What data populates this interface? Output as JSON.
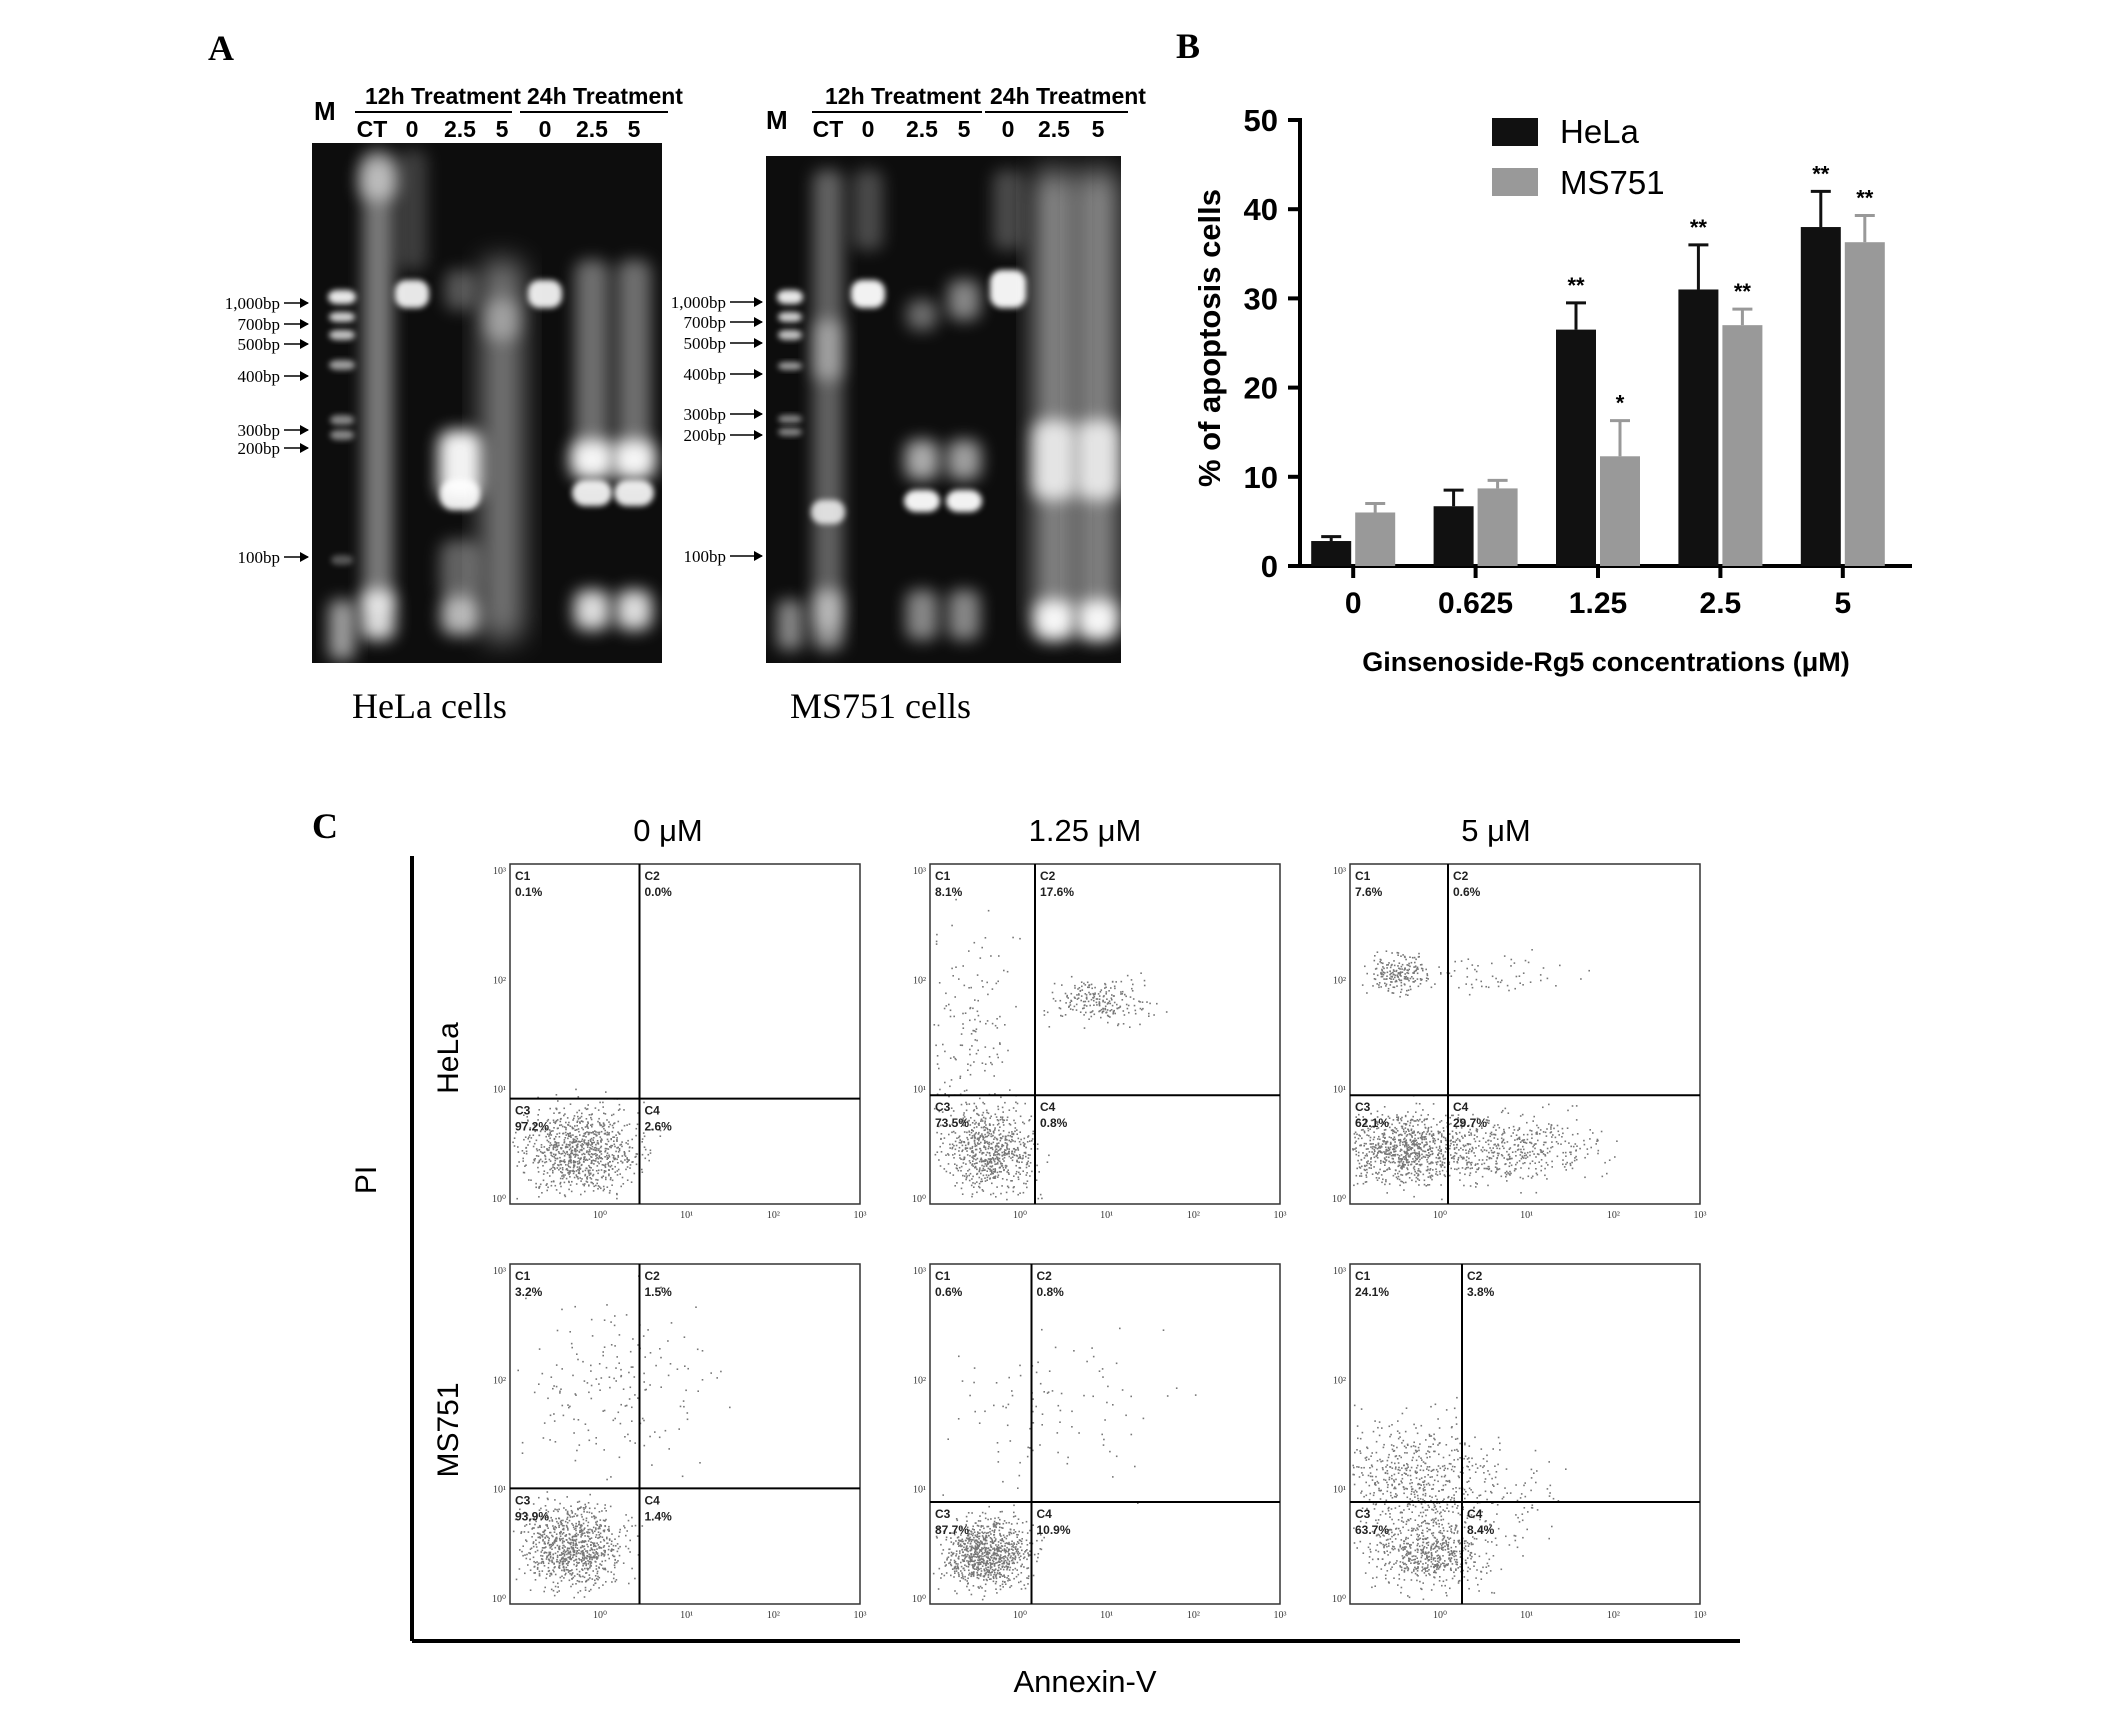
{
  "panel_labels": {
    "a": "A",
    "b": "B",
    "c": "C"
  },
  "gel_hela": {
    "marker": "M",
    "group1": "12h Treatment",
    "group2": "24h Treatment",
    "lanes": [
      "CT",
      "0",
      "2.5",
      "5",
      "0",
      "2.5",
      "5"
    ],
    "caption": "HeLa cells",
    "ladder": [
      "1,000bp",
      "700bp",
      "500bp",
      "400bp",
      "300bp",
      "200bp",
      "100bp"
    ]
  },
  "gel_ms751": {
    "marker": "M",
    "group1": "12h Treatment",
    "group2": "24h Treatment",
    "lanes": [
      "CT",
      "0",
      "2.5",
      "5",
      "0",
      "2.5",
      "5"
    ],
    "caption": "MS751 cells",
    "ladder": [
      "1,000bp",
      "700bp",
      "500bp",
      "400bp",
      "300bp",
      "200bp",
      "100bp"
    ]
  },
  "chart_data": {
    "type": "bar",
    "categories": [
      "0",
      "0.625",
      "1.25",
      "2.5",
      "5"
    ],
    "series": [
      {
        "name": "HeLa",
        "color": "#111111",
        "values": [
          2.8,
          6.7,
          26.5,
          31.0,
          38.0
        ],
        "errors": [
          0.5,
          1.8,
          3.0,
          5.0,
          4.0
        ],
        "significance": [
          "",
          "",
          "**",
          "**",
          "**"
        ]
      },
      {
        "name": "MS751",
        "color": "#999999",
        "values": [
          6.0,
          8.7,
          12.3,
          27.0,
          36.3
        ],
        "errors": [
          1.0,
          0.9,
          4.0,
          1.8,
          3.0
        ],
        "significance": [
          "",
          "",
          "*",
          "**",
          "**"
        ]
      }
    ],
    "xlabel": "Ginsenoside-Rg5 concentrations (μM)",
    "ylabel": "% of apoptosis cells",
    "ylim": [
      0,
      50
    ],
    "yticks": [
      0,
      10,
      20,
      30,
      40,
      50
    ],
    "legend_position": "top-left"
  },
  "flow": {
    "columns": [
      "0 μM",
      "1.25 μM",
      "5 μM"
    ],
    "rows": [
      "HeLa",
      "MS751"
    ],
    "ylabel": "PI",
    "xlabel": "Annexin-V",
    "quadrant_labels": [
      "C1",
      "C2",
      "C3",
      "C4"
    ],
    "axis_ticks": {
      "y": [
        "10³",
        "10²",
        "10¹",
        "10⁰"
      ],
      "x": [
        "10⁰",
        "10¹",
        "10²",
        "10³"
      ]
    },
    "plots": [
      {
        "C1": "0.1%",
        "C2": "0.0%",
        "C3": "97.2%",
        "C4": "2.6%"
      },
      {
        "C1": "8.1%",
        "C2": "17.6%",
        "C3": "73.5%",
        "C4": "0.8%"
      },
      {
        "C1": "7.6%",
        "C2": "0.6%",
        "C3": "62.1%",
        "C4": "29.7%"
      },
      {
        "C1": "3.2%",
        "C2": "1.5%",
        "C3": "93.9%",
        "C4": "1.4%"
      },
      {
        "C1": "0.6%",
        "C2": "0.8%",
        "C3": "87.7%",
        "C4": "10.9%"
      },
      {
        "C1": "24.1%",
        "C2": "3.8%",
        "C3": "63.7%",
        "C4": "8.4%"
      }
    ]
  }
}
